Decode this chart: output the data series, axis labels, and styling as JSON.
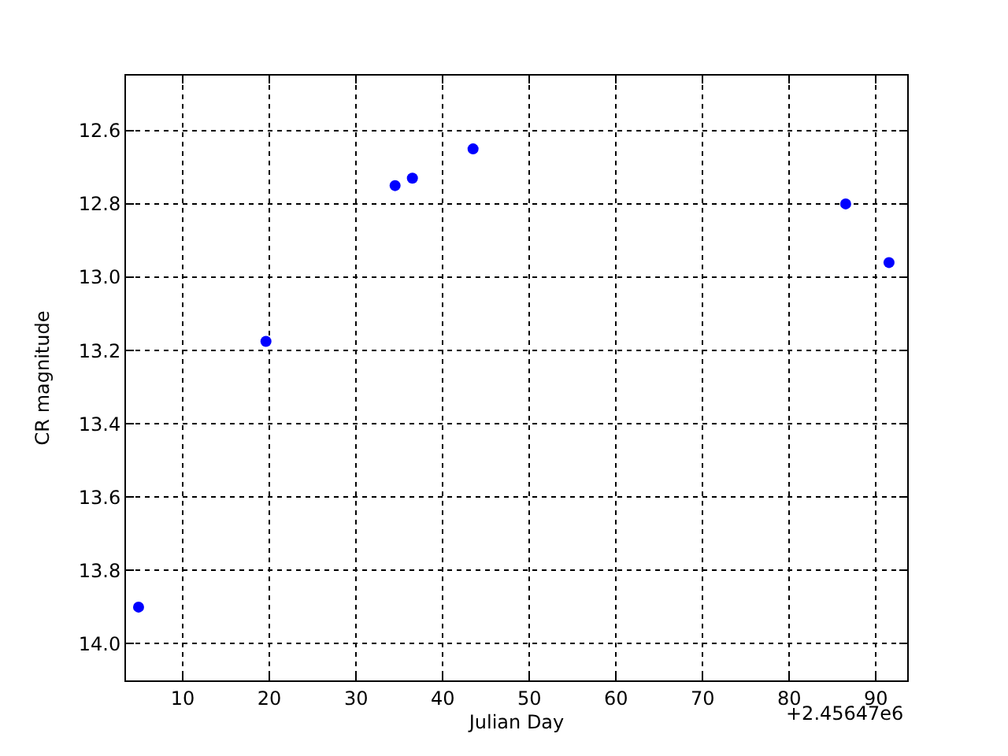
{
  "chart_data": {
    "type": "scatter",
    "xlabel": "Julian Day",
    "ylabel": "CR magnitude",
    "x": [
      4.9,
      19.6,
      34.5,
      36.5,
      43.5,
      86.5,
      91.5
    ],
    "series": [
      {
        "color": "#0000ff",
        "values": [
          13.9,
          13.175,
          12.75,
          12.73,
          12.65,
          12.8,
          12.96
        ]
      }
    ],
    "xlim": [
      3.45,
      93.6
    ],
    "xticks": [
      10,
      20,
      30,
      40,
      50,
      60,
      70,
      80,
      90
    ],
    "ylim": [
      14.1,
      12.45
    ],
    "yticks": [
      {
        "value": 12.6,
        "label": "12.6"
      },
      {
        "value": 12.8,
        "label": "12.8"
      },
      {
        "value": 13.0,
        "label": "13.0"
      },
      {
        "value": 13.2,
        "label": "13.2"
      },
      {
        "value": 13.4,
        "label": "13.4"
      },
      {
        "value": 13.6,
        "label": "13.6"
      },
      {
        "value": 13.8,
        "label": "13.8"
      },
      {
        "value": 14.0,
        "label": "14.0"
      }
    ],
    "annotations": [
      "+2.45647e6"
    ],
    "grid": true,
    "marker": "circle",
    "legend": false
  }
}
